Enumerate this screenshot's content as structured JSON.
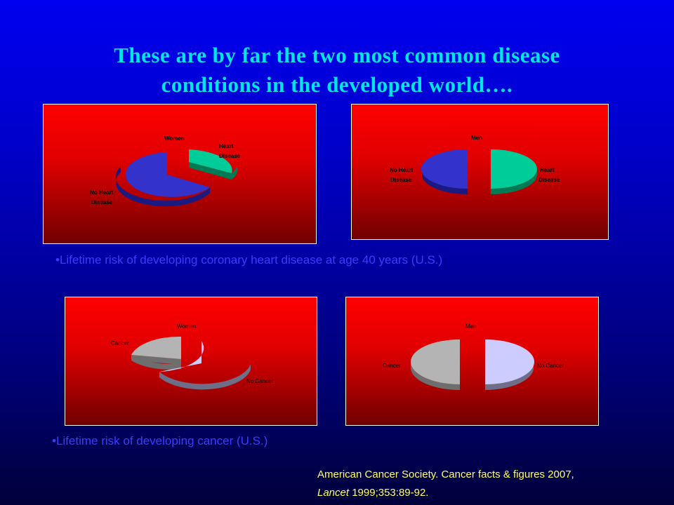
{
  "slide": {
    "title_line1": "These are by far the two most common disease",
    "title_line2": "conditions in the developed world….",
    "caption_heart": "•Lifetime risk of developing coronary heart disease at age 40 years (U.S.)",
    "caption_cancer": "•Lifetime risk of developing cancer (U.S.)",
    "reference_line1": "American Cancer Society. Cancer facts & figures 2007,",
    "reference_journal": "Lancet",
    "reference_rest": " 1999;353:89-92."
  },
  "colors": {
    "title": "#00e6e6",
    "heart_disease_slice": "#00cc99",
    "no_heart_disease_slice": "#3333cc",
    "cancer_slice": "#b4b4b4",
    "no_cancer_slice": "#ccccff",
    "chart_background_top": "#ff0000",
    "chart_background_bottom": "#700000",
    "caption": "#3c3cff",
    "reference": "#ffff66"
  },
  "chart_data": [
    {
      "type": "pie",
      "title": "Women",
      "series": [
        {
          "name": "Heart Disease",
          "value": 0.32
        },
        {
          "name": "No Heart Disease",
          "value": 0.68
        }
      ]
    },
    {
      "type": "pie",
      "title": "Men",
      "series": [
        {
          "name": "Heart Disease",
          "value": 0.49
        },
        {
          "name": "No Heart Disease",
          "value": 0.51
        }
      ]
    },
    {
      "type": "pie",
      "title": "Women",
      "series": [
        {
          "name": "Cancer",
          "value": 0.33
        },
        {
          "name": "No Cancer",
          "value": 0.67
        }
      ]
    },
    {
      "type": "pie",
      "title": "Men",
      "series": [
        {
          "name": "Cancer",
          "value": 0.45
        },
        {
          "name": "No Cancer",
          "value": 0.55
        }
      ]
    }
  ]
}
